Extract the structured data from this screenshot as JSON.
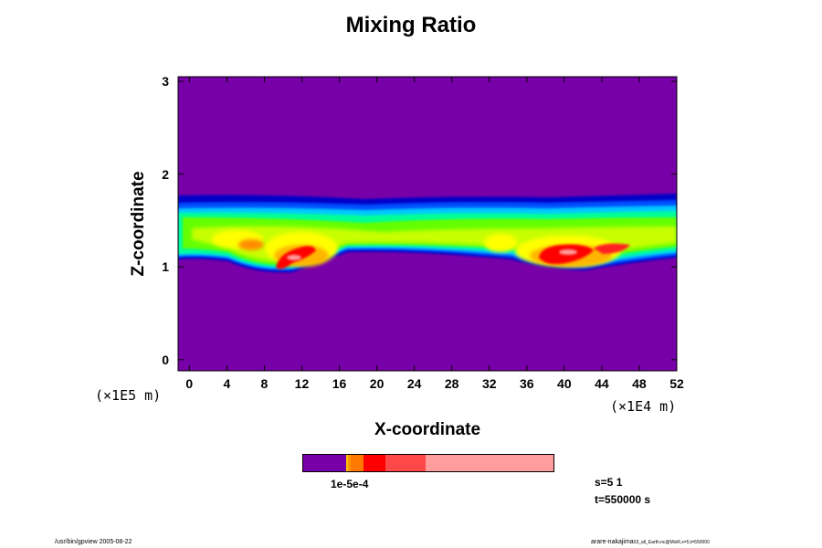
{
  "chart_data": {
    "type": "heatmap",
    "title": "Mixing Ratio",
    "xlabel": "X-coordinate",
    "ylabel": "Z-coordinate",
    "x_unit_label": "(×1E4 m)",
    "y_unit_label": "(×1E5 m)",
    "xlim": [
      -1.2,
      52
    ],
    "ylim": [
      -0.12,
      3.05
    ],
    "x_ticks": [
      0,
      4,
      8,
      12,
      16,
      20,
      24,
      28,
      32,
      36,
      40,
      44,
      48,
      52
    ],
    "y_ticks": [
      0,
      1,
      2,
      3
    ],
    "background_color": "#7800a8",
    "cloud_layer": {
      "z_base_typical": 1.12,
      "z_top_typical": 1.76,
      "blobs": [
        {
          "x": 11.5,
          "z": 1.12,
          "value": "high"
        },
        {
          "x": 39.5,
          "z": 1.15,
          "value": "high"
        },
        {
          "x": 45,
          "z": 1.2,
          "value": "high"
        }
      ]
    },
    "colorbar": {
      "segments": [
        {
          "color": "#7800a8",
          "fraction": 0.17
        },
        {
          "color": "#ffc800",
          "fraction": 0.01
        },
        {
          "color": "#ff9600",
          "fraction": 0.01
        },
        {
          "color": "#ff7800",
          "fraction": 0.05
        },
        {
          "color": "#ff0000",
          "fraction": 0.09
        },
        {
          "color": "#ff4848",
          "fraction": 0.16
        },
        {
          "color": "#ff9c9c",
          "fraction": 0.51
        }
      ],
      "tick_label": "1e-5e-4"
    },
    "grid": false,
    "legend": "none"
  },
  "annotations": {
    "step": "s=5 1",
    "time": "t=550000 s",
    "footer_left": "/usr/bin/gpview 2005-08-22",
    "footer_right": "arare-nakajima",
    "footer_right_small": "03_all_Earth.nc@MixR,x=5,t=550000"
  }
}
